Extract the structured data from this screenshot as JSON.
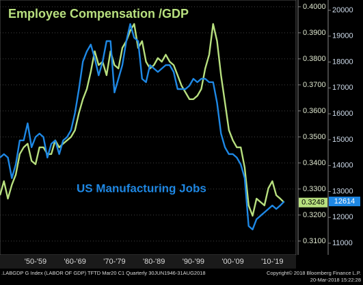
{
  "chart_data": {
    "type": "line",
    "x": [
      1946,
      1947,
      1948,
      1949,
      1950,
      1951,
      1952,
      1953,
      1954,
      1955,
      1956,
      1957,
      1958,
      1959,
      1960,
      1961,
      1962,
      1963,
      1964,
      1965,
      1966,
      1967,
      1968,
      1969,
      1970,
      1971,
      1972,
      1973,
      1974,
      1975,
      1976,
      1977,
      1978,
      1979,
      1980,
      1981,
      1982,
      1983,
      1984,
      1985,
      1986,
      1987,
      1988,
      1989,
      1990,
      1991,
      1992,
      1993,
      1994,
      1995,
      1996,
      1997,
      1998,
      1999,
      2000,
      2001,
      2002,
      2003,
      2004,
      2005,
      2006,
      2007,
      2008,
      2009,
      2010,
      2011,
      2012,
      2013,
      2014,
      2015,
      2016,
      2017,
      2018
    ],
    "series": [
      {
        "name": "Employee Compensation /GDP",
        "color": "#b8e07f",
        "axis": "y",
        "values": [
          0.3276,
          0.333,
          0.3263,
          0.3316,
          0.3355,
          0.3434,
          0.346,
          0.3474,
          0.3408,
          0.3395,
          0.346,
          0.346,
          0.3434,
          0.3434,
          0.3487,
          0.346,
          0.3474,
          0.3487,
          0.35,
          0.3526,
          0.3592,
          0.3645,
          0.3684,
          0.375,
          0.3829,
          0.3776,
          0.3789,
          0.3737,
          0.3829,
          0.3776,
          0.3763,
          0.3842,
          0.3868,
          0.3908,
          0.3934,
          0.3842,
          0.3868,
          0.3789,
          0.3763,
          0.3776,
          0.3803,
          0.3789,
          0.3816,
          0.3789,
          0.3776,
          0.3737,
          0.3697,
          0.3671,
          0.3645,
          0.3645,
          0.3658,
          0.3684,
          0.3763,
          0.3816,
          0.3934,
          0.3868,
          0.3737,
          0.3632,
          0.3526,
          0.3487,
          0.346,
          0.346,
          0.3382,
          0.3237,
          0.3197,
          0.3263,
          0.325,
          0.3237,
          0.3303,
          0.333,
          0.3276,
          0.3263,
          0.3248
        ]
      },
      {
        "name": "US Manufacturing Jobs",
        "color": "#1e88e5",
        "axis": "y2",
        "values": [
          14309,
          14442,
          14309,
          13515,
          14045,
          14971,
          14971,
          15633,
          14706,
          15103,
          15236,
          15103,
          14309,
          14839,
          14971,
          14442,
          14971,
          15103,
          15368,
          16030,
          16956,
          18015,
          18412,
          18677,
          18147,
          17486,
          18015,
          18809,
          18809,
          16824,
          17353,
          17882,
          18809,
          19471,
          18941,
          18809,
          17353,
          17221,
          17882,
          17750,
          17618,
          17750,
          17882,
          17882,
          17618,
          16956,
          16956,
          16956,
          17088,
          17353,
          17221,
          17353,
          17353,
          17221,
          17221,
          16427,
          15236,
          14706,
          14442,
          14442,
          14309,
          14045,
          13515,
          11662,
          11530,
          11927,
          12059,
          12192,
          12324,
          12457,
          12324,
          12457,
          12614
        ]
      }
    ],
    "xlim": [
      1946,
      2021
    ],
    "xticks": [
      {
        "value": 1955,
        "label": "'50-'59"
      },
      {
        "value": 1965,
        "label": "'60-'69"
      },
      {
        "value": 1975,
        "label": "'70-'79"
      },
      {
        "value": 1985,
        "label": "'80-'89"
      },
      {
        "value": 1995,
        "label": "'90-'99"
      },
      {
        "value": 2005,
        "label": "'00-'09"
      },
      {
        "value": 2015,
        "label": "'10-'19"
      }
    ],
    "ylim": [
      0.3047,
      0.4026
    ],
    "yticks": [
      {
        "value": 0.31,
        "label": "0.3100"
      },
      {
        "value": 0.32,
        "label": "0.3200"
      },
      {
        "value": 0.33,
        "label": "0.3300"
      },
      {
        "value": 0.34,
        "label": "0.3400"
      },
      {
        "value": 0.35,
        "label": "0.3500"
      },
      {
        "value": 0.36,
        "label": "0.3600"
      },
      {
        "value": 0.37,
        "label": "0.3700"
      },
      {
        "value": 0.38,
        "label": "0.3800"
      },
      {
        "value": 0.39,
        "label": "0.3900"
      },
      {
        "value": 0.4,
        "label": "0.4000"
      }
    ],
    "y2lim": [
      10550,
      20397
    ],
    "y2ticks": [
      11000,
      12000,
      13000,
      14000,
      15000,
      16000,
      17000,
      18000,
      19000,
      20000
    ],
    "grid": true,
    "footer": {
      "source": ".LABGDP G Index (LABOR OF GDP) TFTD Mar20 C1  Quarterly 30JUN1946-31AUG2018",
      "copyright": "Copyright© 2018 Bloomberg Finance L.P.",
      "timestamp": "20-Mar-2018 15:22:28"
    }
  }
}
